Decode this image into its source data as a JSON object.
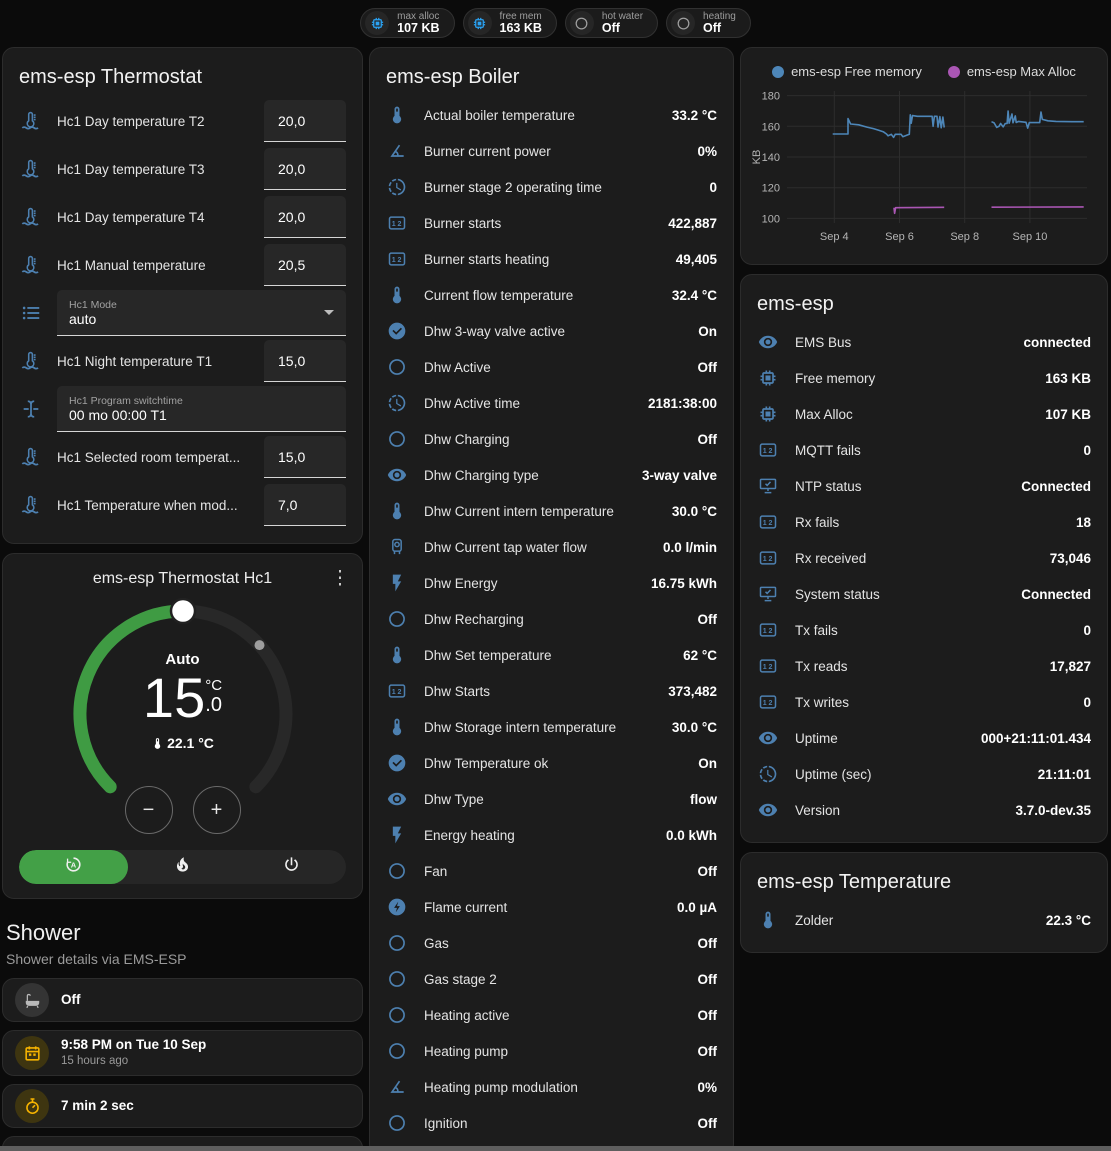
{
  "header": {
    "badges": [
      {
        "icon": "chip",
        "icon_color": "#2aa3f4",
        "label": "max alloc",
        "value": "107 KB"
      },
      {
        "icon": "chip",
        "icon_color": "#2aa3f4",
        "label": "free mem",
        "value": "163 KB"
      },
      {
        "icon": "circle-outline",
        "icon_color": "#9e9e9e",
        "label": "hot water",
        "value": "Off"
      },
      {
        "icon": "circle-outline",
        "icon_color": "#9e9e9e",
        "label": "heating",
        "value": "Off"
      }
    ]
  },
  "thermostat_card": {
    "title": "ems-esp Thermostat",
    "rows": [
      {
        "icon": "thermometer-water",
        "label": "Hc1 Day temperature T2",
        "type": "number",
        "value": "20,0"
      },
      {
        "icon": "thermometer-water",
        "label": "Hc1 Day temperature T3",
        "type": "number",
        "value": "20,0"
      },
      {
        "icon": "thermometer-water",
        "label": "Hc1 Day temperature T4",
        "type": "number",
        "value": "20,0"
      },
      {
        "icon": "thermometer-water",
        "label": "Hc1 Manual temperature",
        "type": "number",
        "value": "20,5"
      },
      {
        "icon": "list",
        "label": "Hc1 Mode",
        "type": "select",
        "value": "auto"
      },
      {
        "icon": "thermometer-water",
        "label": "Hc1 Night temperature T1",
        "type": "number",
        "value": "15,0"
      },
      {
        "icon": "cursor-text",
        "label": "Hc1 Program switchtime",
        "type": "text",
        "value": "00 mo 00:00 T1"
      },
      {
        "icon": "thermometer-water",
        "label": "Hc1 Selected room temperat...",
        "type": "number",
        "value": "15,0"
      },
      {
        "icon": "thermometer-water",
        "label": "Hc1 Temperature when mod...",
        "type": "number",
        "value": "7,0"
      }
    ]
  },
  "dial_card": {
    "title": "ems-esp Thermostat Hc1",
    "menu_glyph": "⋮",
    "mode_label": "Auto",
    "target_int": "15",
    "target_unit": "°C",
    "target_dec": ".0",
    "current_temp": "22.1 °C",
    "minus_label": "−",
    "plus_label": "+",
    "modes": [
      {
        "icon": "auto-mode",
        "active": true
      },
      {
        "icon": "fire",
        "active": false
      },
      {
        "icon": "power",
        "active": false
      }
    ]
  },
  "shower_section": {
    "title": "Shower",
    "subtitle": "Shower details via EMS-ESP",
    "cards": [
      {
        "icon": "bathtub",
        "tone": "gray",
        "title": "Off",
        "subtitle": "",
        "centered": false
      },
      {
        "icon": "calendar",
        "tone": "amber",
        "title": "9:58 PM on Tue 10 Sep",
        "subtitle": "15 hours ago",
        "centered": false
      },
      {
        "icon": "timer",
        "tone": "amber",
        "title": "7 min 2 sec",
        "subtitle": "",
        "centered": false
      },
      {
        "icon": "snowflake-alert",
        "tone": "blue",
        "title": "",
        "subtitle": "",
        "centered": true
      }
    ]
  },
  "boiler_card": {
    "title": "ems-esp Boiler",
    "rows": [
      {
        "icon": "thermometer",
        "label": "Actual boiler temperature",
        "value": "33.2 °C"
      },
      {
        "icon": "angle",
        "label": "Burner current power",
        "value": "0%"
      },
      {
        "icon": "progress-clock",
        "label": "Burner stage 2 operating time",
        "value": "0"
      },
      {
        "icon": "counter",
        "label": "Burner starts",
        "value": "422,887"
      },
      {
        "icon": "counter",
        "label": "Burner starts heating",
        "value": "49,405"
      },
      {
        "icon": "thermometer",
        "label": "Current flow temperature",
        "value": "32.4 °C"
      },
      {
        "icon": "check-circle",
        "label": "Dhw 3-way valve active",
        "value": "On"
      },
      {
        "icon": "circle-outline",
        "label": "Dhw Active",
        "value": "Off"
      },
      {
        "icon": "progress-clock",
        "label": "Dhw Active time",
        "value": "2181:38:00"
      },
      {
        "icon": "circle-outline",
        "label": "Dhw Charging",
        "value": "Off"
      },
      {
        "icon": "eye",
        "label": "Dhw Charging type",
        "value": "3-way valve"
      },
      {
        "icon": "thermometer",
        "label": "Dhw Current intern temperature",
        "value": "30.0 °C"
      },
      {
        "icon": "water-boiler",
        "label": "Dhw Current tap water flow",
        "value": "0.0 l/min"
      },
      {
        "icon": "flash",
        "label": "Dhw Energy",
        "value": "16.75 kWh"
      },
      {
        "icon": "circle-outline",
        "label": "Dhw Recharging",
        "value": "Off"
      },
      {
        "icon": "thermometer",
        "label": "Dhw Set temperature",
        "value": "62 °C"
      },
      {
        "icon": "counter",
        "label": "Dhw Starts",
        "value": "373,482"
      },
      {
        "icon": "thermometer",
        "label": "Dhw Storage intern temperature",
        "value": "30.0 °C"
      },
      {
        "icon": "check-circle",
        "label": "Dhw Temperature ok",
        "value": "On"
      },
      {
        "icon": "eye",
        "label": "Dhw Type",
        "value": "flow"
      },
      {
        "icon": "flash",
        "label": "Energy heating",
        "value": "0.0 kWh"
      },
      {
        "icon": "circle-outline",
        "label": "Fan",
        "value": "Off"
      },
      {
        "icon": "flash-circle",
        "label": "Flame current",
        "value": "0.0 µA"
      },
      {
        "icon": "circle-outline",
        "label": "Gas",
        "value": "Off"
      },
      {
        "icon": "circle-outline",
        "label": "Gas stage 2",
        "value": "Off"
      },
      {
        "icon": "circle-outline",
        "label": "Heating active",
        "value": "Off"
      },
      {
        "icon": "circle-outline",
        "label": "Heating pump",
        "value": "Off"
      },
      {
        "icon": "angle",
        "label": "Heating pump modulation",
        "value": "0%"
      },
      {
        "icon": "circle-outline",
        "label": "Ignition",
        "value": "Off"
      }
    ]
  },
  "emsesp_card": {
    "title": "ems-esp",
    "rows": [
      {
        "icon": "eye",
        "label": "EMS Bus",
        "value": "connected"
      },
      {
        "icon": "chip",
        "label": "Free memory",
        "value": "163 KB"
      },
      {
        "icon": "chip",
        "label": "Max Alloc",
        "value": "107 KB"
      },
      {
        "icon": "counter",
        "label": "MQTT fails",
        "value": "0"
      },
      {
        "icon": "monitor-check",
        "label": "NTP status",
        "value": "Connected"
      },
      {
        "icon": "counter",
        "label": "Rx fails",
        "value": "18"
      },
      {
        "icon": "counter",
        "label": "Rx received",
        "value": "73,046"
      },
      {
        "icon": "monitor-check",
        "label": "System status",
        "value": "Connected"
      },
      {
        "icon": "counter",
        "label": "Tx fails",
        "value": "0"
      },
      {
        "icon": "counter",
        "label": "Tx reads",
        "value": "17,827"
      },
      {
        "icon": "counter",
        "label": "Tx writes",
        "value": "0"
      },
      {
        "icon": "eye",
        "label": "Uptime",
        "value": "000+21:11:01.434"
      },
      {
        "icon": "progress-clock",
        "label": "Uptime (sec)",
        "value": "21:11:01"
      },
      {
        "icon": "eye",
        "label": "Version",
        "value": "3.7.0-dev.35"
      }
    ]
  },
  "temperature_card": {
    "title": "ems-esp Temperature",
    "rows": [
      {
        "icon": "thermometer",
        "label": "Zolder",
        "value": "22.3 °C"
      }
    ]
  },
  "chart_data": {
    "type": "line",
    "title": "",
    "xlabel": "",
    "ylabel": "KB",
    "unit": "KB",
    "grid": true,
    "legend_position": "top",
    "ylim": [
      97,
      183
    ],
    "y_ticks": [
      100,
      120,
      140,
      160,
      180
    ],
    "xlim": [
      2.55,
      11.75
    ],
    "x_ticks": [
      {
        "label": "Sep 4",
        "x": 4
      },
      {
        "label": "Sep 6",
        "x": 6
      },
      {
        "label": "Sep 8",
        "x": 8
      },
      {
        "label": "Sep 10",
        "x": 10
      }
    ],
    "series": [
      {
        "name": "ems-esp Free memory",
        "color": "#4d86b8",
        "segments": [
          [
            [
              3.95,
              155
            ],
            [
              4.42,
              155
            ],
            [
              4.42,
              165
            ],
            [
              4.5,
              161.5
            ],
            [
              4.75,
              161
            ],
            [
              5.0,
              159.5
            ],
            [
              5.2,
              158.5
            ],
            [
              5.35,
              157.5
            ],
            [
              5.5,
              156.5
            ],
            [
              5.6,
              155
            ],
            [
              5.65,
              153.8
            ],
            [
              5.75,
              154.8
            ],
            [
              5.82,
              152.8
            ],
            [
              5.87,
              154.8
            ],
            [
              6.05,
              154.8
            ],
            [
              6.1,
              153.2
            ],
            [
              6.3,
              154.8
            ],
            [
              6.33,
              167.5
            ],
            [
              6.36,
              162
            ],
            [
              6.4,
              167
            ],
            [
              6.55,
              166.5
            ],
            [
              7.0,
              166.5
            ],
            [
              7.03,
              160
            ],
            [
              7.07,
              166.5
            ],
            [
              7.15,
              166.5
            ],
            [
              7.18,
              159.5
            ],
            [
              7.24,
              166.3
            ],
            [
              7.28,
              159
            ],
            [
              7.33,
              166
            ],
            [
              7.37,
              159.2
            ]
          ],
          [
            [
              8.82,
              163
            ],
            [
              8.9,
              162.2
            ],
            [
              8.98,
              159.3
            ],
            [
              9.05,
              160
            ],
            [
              9.1,
              161.8
            ],
            [
              9.18,
              159.6
            ],
            [
              9.24,
              161.8
            ],
            [
              9.3,
              161.8
            ],
            [
              9.33,
              170
            ],
            [
              9.36,
              162
            ],
            [
              9.45,
              168
            ],
            [
              9.48,
              162.3
            ],
            [
              9.55,
              166.8
            ],
            [
              9.58,
              162.5
            ],
            [
              9.65,
              163.2
            ],
            [
              9.88,
              162.6
            ],
            [
              9.93,
              158.8
            ],
            [
              9.98,
              162.4
            ],
            [
              10.3,
              162.4
            ],
            [
              10.34,
              169.3
            ],
            [
              10.38,
              164.5
            ],
            [
              10.55,
              163.6
            ],
            [
              10.8,
              163.2
            ],
            [
              11.3,
              163
            ],
            [
              11.65,
              163
            ]
          ]
        ]
      },
      {
        "name": "ems-esp Max Alloc",
        "color": "#aa56b4",
        "segments": [
          [
            [
              5.83,
              107
            ],
            [
              5.85,
              103.3
            ],
            [
              5.88,
              107
            ],
            [
              7.37,
              107.2
            ]
          ],
          [
            [
              8.82,
              107.3
            ],
            [
              11.65,
              107.5
            ]
          ]
        ]
      }
    ]
  }
}
